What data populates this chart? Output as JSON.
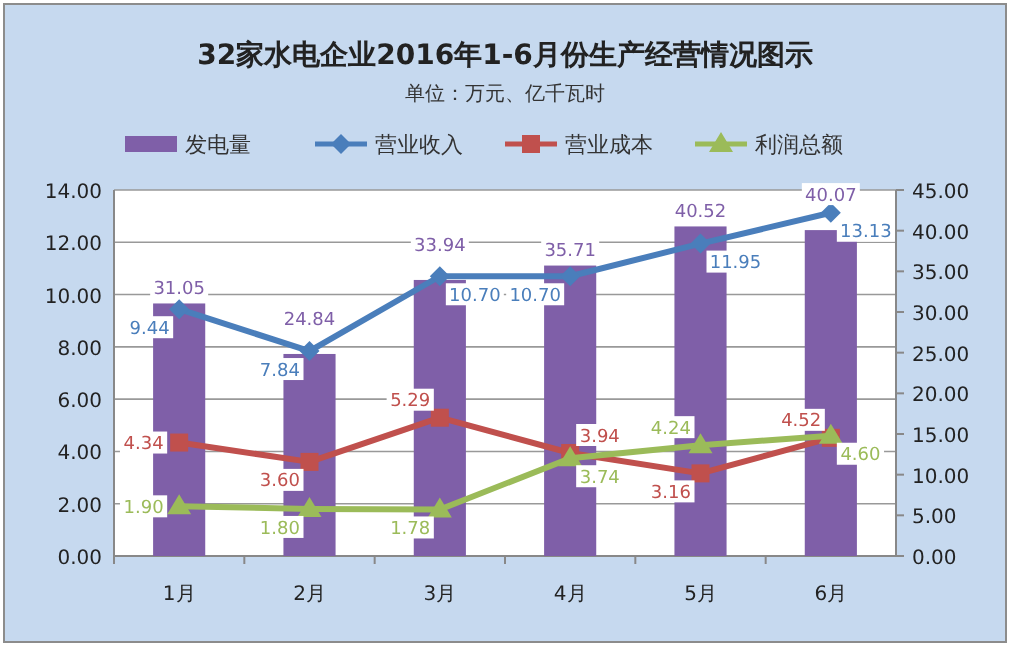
{
  "chart_data": {
    "type": "bar",
    "title": "32家水电企业2016年1-6月份生产经营情况图示",
    "subtitle": "单位：万元、亿千瓦时",
    "categories": [
      "1月",
      "2月",
      "3月",
      "4月",
      "5月",
      "6月"
    ],
    "series": [
      {
        "name": "发电量",
        "axis": "y2",
        "color": "#7f5fa8",
        "values": [
          31.05,
          24.84,
          33.94,
          35.71,
          40.52,
          40.07
        ],
        "value_labels": [
          "31.05",
          "24.84",
          "33.94",
          "35.71",
          "40.52",
          "40.07"
        ]
      },
      {
        "name": "营业收入",
        "type": "line",
        "marker": "diamond",
        "color": "#4a7ebb",
        "values": [
          9.44,
          7.84,
          10.7,
          10.7,
          11.95,
          13.13
        ],
        "value_labels": [
          "9.44",
          "7.84",
          "10.70",
          "10.70",
          "11.95",
          "13.13"
        ]
      },
      {
        "name": "营业成本",
        "type": "line",
        "marker": "square",
        "color": "#c0504d",
        "values": [
          4.34,
          3.6,
          5.29,
          3.94,
          3.16,
          4.52
        ],
        "value_labels": [
          "4.34",
          "3.60",
          "5.29",
          "3.94",
          "3.16",
          "4.52"
        ]
      },
      {
        "name": "利润总额",
        "type": "line",
        "marker": "triangle",
        "color": "#9bbb59",
        "values": [
          1.9,
          1.8,
          1.78,
          3.74,
          4.24,
          4.6
        ],
        "value_labels": [
          "1.90",
          "1.80",
          "1.78",
          "3.74",
          "4.24",
          "4.60"
        ]
      }
    ],
    "ylim": [
      0,
      14
    ],
    "yticks": [
      {
        "value": 0,
        "label": "0.00"
      },
      {
        "value": 2,
        "label": "2.00"
      },
      {
        "value": 4,
        "label": "4.00"
      },
      {
        "value": 6,
        "label": "6.00"
      },
      {
        "value": 8,
        "label": "8.00"
      },
      {
        "value": 10,
        "label": "10.00"
      },
      {
        "value": 12,
        "label": "12.00"
      },
      {
        "value": 14,
        "label": "14.00"
      }
    ],
    "y2lim": [
      0,
      45
    ],
    "y2ticks": [
      {
        "value": 0,
        "label": "0.00"
      },
      {
        "value": 5,
        "label": "5.00"
      },
      {
        "value": 10,
        "label": "10.00"
      },
      {
        "value": 15,
        "label": "15.00"
      },
      {
        "value": 20,
        "label": "20.00"
      },
      {
        "value": 25,
        "label": "25.00"
      },
      {
        "value": 30,
        "label": "30.00"
      },
      {
        "value": 35,
        "label": "35.00"
      },
      {
        "value": 40,
        "label": "40.00"
      },
      {
        "value": 45,
        "label": "45.00"
      }
    ],
    "grid": "y",
    "legend": "top"
  }
}
